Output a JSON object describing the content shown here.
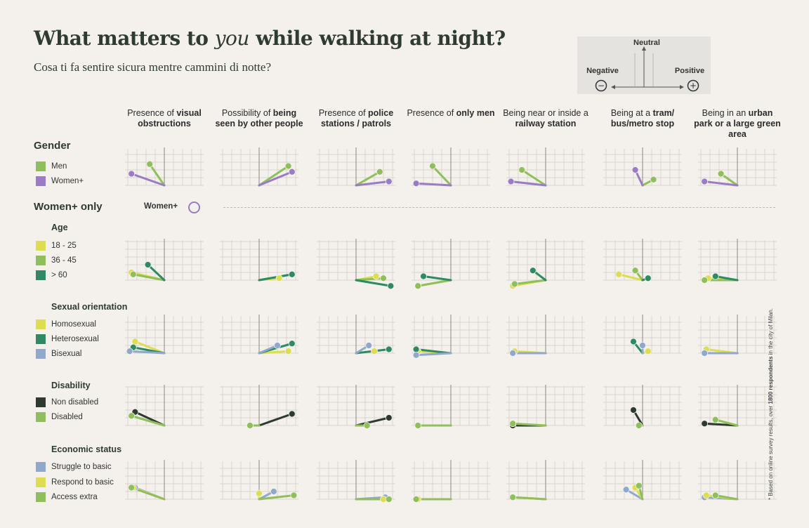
{
  "title_pre": "What matters to ",
  "title_em": "you",
  "title_post": " while walking at night?",
  "subtitle": "Cosa ti fa sentire sicura mentre cammini di notte?",
  "key": {
    "neutral": "Neutral",
    "negative": "Negative",
    "positive": "Positive",
    "minus": "−",
    "plus": "+"
  },
  "columns": [
    {
      "pre": "Presence of ",
      "bold": "visual obstructions",
      "post": ""
    },
    {
      "pre": "Possibility of ",
      "bold": "being seen by other people",
      "post": ""
    },
    {
      "pre": "Presence of ",
      "bold": "police stations / patrols",
      "post": ""
    },
    {
      "pre": "Presence of ",
      "bold": "only men",
      "post": ""
    },
    {
      "pre": "Being near or inside a ",
      "bold": "railway station",
      "post": ""
    },
    {
      "pre": "Being at a ",
      "bold": "tram/ bus/metro stop",
      "post": ""
    },
    {
      "pre": "Being in an ",
      "bold": "urban park or a large green area",
      "post": ""
    }
  ],
  "sections": {
    "gender": "Gender",
    "women_only": "Women+ only",
    "women_tag": "Women+",
    "age": "Age",
    "sexual_orientation": "Sexual orientation",
    "disability": "Disability",
    "economic": "Economic status"
  },
  "footnote_pre": "* Based on online survey results, over ",
  "footnote_bold": "1800 respondents",
  "footnote_post": " in the city of Milan.",
  "colors": {
    "men": "#8fbf5a",
    "women": "#9a7cc4",
    "age_18": "#dcdd4f",
    "age_36": "#8fbf5a",
    "age_60": "#2e8a63",
    "homo": "#dcdd4f",
    "hetero": "#2e8a63",
    "bi": "#8fa8cc",
    "nondis": "#2f3a2f",
    "dis": "#8fbf5a",
    "struggle": "#8fa8cc",
    "respond": "#dcdd4f",
    "access": "#8fbf5a"
  },
  "chart_data": {
    "type": "scatter",
    "description_axes": {
      "x": "Negative to Positive",
      "y": "Neutral"
    },
    "rows": [
      {
        "group": "Gender",
        "series": [
          {
            "name": "Men",
            "color": "#8fbf5a",
            "points": [
              [
                -0.4,
                0.55
              ],
              [
                0.8,
                0.5
              ],
              [
                0.65,
                0.35
              ],
              [
                -0.5,
                0.5
              ],
              [
                -0.65,
                0.4
              ],
              [
                0.3,
                0.15
              ],
              [
                -0.45,
                0.3
              ]
            ]
          },
          {
            "name": "Women+",
            "color": "#9a7cc4",
            "points": [
              [
                -0.9,
                0.3
              ],
              [
                0.9,
                0.35
              ],
              [
                0.9,
                0.1
              ],
              [
                -0.95,
                0.05
              ],
              [
                -0.95,
                0.1
              ],
              [
                -0.2,
                0.4
              ],
              [
                -0.9,
                0.1
              ]
            ]
          }
        ]
      },
      {
        "group": "Age",
        "series": [
          {
            "name": "18 - 25",
            "color": "#dcdd4f",
            "points": [
              [
                -0.9,
                0.2
              ],
              [
                0.55,
                0.05
              ],
              [
                0.55,
                0.1
              ],
              [
                -0.9,
                -0.15
              ],
              [
                -0.9,
                -0.15
              ],
              [
                -0.65,
                0.15
              ],
              [
                -0.8,
                0.05
              ]
            ]
          },
          {
            "name": "36 - 45",
            "color": "#8fbf5a",
            "points": [
              [
                -0.85,
                0.15
              ],
              [
                0.9,
                0.15
              ],
              [
                0.75,
                0.05
              ],
              [
                -0.9,
                -0.15
              ],
              [
                -0.85,
                -0.1
              ],
              [
                -0.2,
                0.25
              ],
              [
                -0.9,
                0.0
              ]
            ]
          },
          {
            "name": "> 60",
            "color": "#2e8a63",
            "points": [
              [
                -0.45,
                0.4
              ],
              [
                0.9,
                0.15
              ],
              [
                0.95,
                -0.15
              ],
              [
                -0.75,
                0.1
              ],
              [
                -0.35,
                0.25
              ],
              [
                0.15,
                0.05
              ],
              [
                -0.6,
                0.1
              ]
            ]
          }
        ]
      },
      {
        "group": "Sexual orientation",
        "series": [
          {
            "name": "Homosexual",
            "color": "#dcdd4f",
            "points": [
              [
                -0.8,
                0.3
              ],
              [
                0.8,
                0.05
              ],
              [
                0.5,
                0.05
              ],
              [
                -0.9,
                0.05
              ],
              [
                -0.85,
                0.05
              ],
              [
                0.15,
                0.05
              ],
              [
                -0.85,
                0.1
              ]
            ]
          },
          {
            "name": "Heterosexual",
            "color": "#2e8a63",
            "points": [
              [
                -0.85,
                0.15
              ],
              [
                0.9,
                0.25
              ],
              [
                0.9,
                0.1
              ],
              [
                -0.95,
                0.1
              ],
              [
                -0.9,
                0.0
              ],
              [
                -0.25,
                0.3
              ],
              [
                -0.9,
                0.0
              ]
            ]
          },
          {
            "name": "Bisexual",
            "color": "#8fa8cc",
            "points": [
              [
                -0.95,
                0.05
              ],
              [
                0.5,
                0.2
              ],
              [
                0.35,
                0.2
              ],
              [
                -0.95,
                -0.05
              ],
              [
                -0.9,
                0.0
              ],
              [
                0.0,
                0.2
              ],
              [
                -0.9,
                0.0
              ]
            ]
          }
        ]
      },
      {
        "group": "Disability",
        "series": [
          {
            "name": "Non disabled",
            "color": "#2f3a2f",
            "points": [
              [
                -0.8,
                0.35
              ],
              [
                0.9,
                0.3
              ],
              [
                0.9,
                0.2
              ],
              [
                -0.9,
                0.0
              ],
              [
                -0.9,
                0.0
              ],
              [
                -0.25,
                0.4
              ],
              [
                -0.9,
                0.05
              ]
            ]
          },
          {
            "name": "Disabled",
            "color": "#8fbf5a",
            "points": [
              [
                -0.9,
                0.25
              ],
              [
                -0.25,
                0.0
              ],
              [
                0.3,
                0.0
              ],
              [
                -0.9,
                0.0
              ],
              [
                -0.9,
                0.05
              ],
              [
                -0.1,
                0.0
              ],
              [
                -0.6,
                0.15
              ]
            ]
          }
        ]
      },
      {
        "group": "Economic status",
        "series": [
          {
            "name": "Struggle to basic",
            "color": "#8fa8cc",
            "points": [
              [
                -0.8,
                0.3
              ],
              [
                0.4,
                0.2
              ],
              [
                0.8,
                0.05
              ],
              [
                -0.95,
                0.0
              ],
              [
                -0.9,
                0.05
              ],
              [
                -0.45,
                0.25
              ],
              [
                -0.9,
                0.05
              ]
            ]
          },
          {
            "name": "Respond to basic",
            "color": "#dcdd4f",
            "points": [
              [
                -0.85,
                0.3
              ],
              [
                0.0,
                0.15
              ],
              [
                0.75,
                0.0
              ],
              [
                -0.9,
                0.0
              ],
              [
                -0.9,
                0.05
              ],
              [
                -0.2,
                0.3
              ],
              [
                -0.85,
                0.1
              ]
            ]
          },
          {
            "name": "Access extra",
            "color": "#8fbf5a",
            "points": [
              [
                -0.9,
                0.3
              ],
              [
                0.95,
                0.1
              ],
              [
                0.9,
                0.0
              ],
              [
                -0.95,
                0.0
              ],
              [
                -0.9,
                0.05
              ],
              [
                -0.1,
                0.35
              ],
              [
                -0.6,
                0.1
              ]
            ]
          }
        ]
      }
    ]
  },
  "legends": {
    "gender": [
      {
        "label": "Men",
        "color": "#8fbf5a"
      },
      {
        "label": "Women+",
        "color": "#9a7cc4"
      }
    ],
    "age": [
      {
        "label": "18 - 25",
        "color": "#dcdd4f"
      },
      {
        "label": "36 - 45",
        "color": "#8fbf5a"
      },
      {
        "label": "> 60",
        "color": "#2e8a63"
      }
    ],
    "sexual_orientation": [
      {
        "label": "Homosexual",
        "color": "#dcdd4f"
      },
      {
        "label": "Heterosexual",
        "color": "#2e8a63"
      },
      {
        "label": "Bisexual",
        "color": "#8fa8cc"
      }
    ],
    "disability": [
      {
        "label": "Non disabled",
        "color": "#2f3a2f"
      },
      {
        "label": "Disabled",
        "color": "#8fbf5a"
      }
    ],
    "economic": [
      {
        "label": "Struggle to basic",
        "color": "#8fa8cc"
      },
      {
        "label": "Respond to basic",
        "color": "#dcdd4f"
      },
      {
        "label": "Access extra",
        "color": "#8fbf5a"
      }
    ]
  }
}
